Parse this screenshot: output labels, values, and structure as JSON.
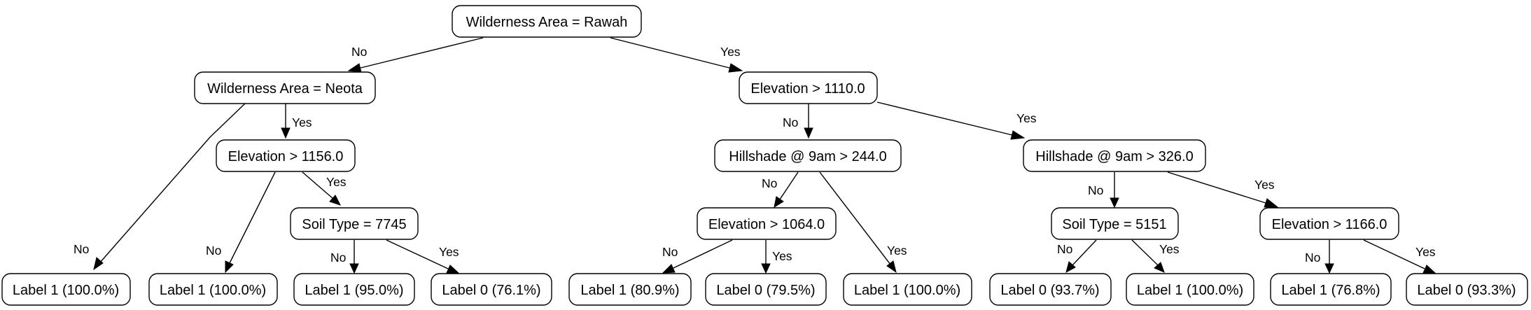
{
  "nodes": {
    "n0": "Wilderness Area = Rawah",
    "n1": "Wilderness Area = Neota",
    "n2": "Elevation > 1110.0",
    "n3": "Elevation > 1156.0",
    "n4": "Soil Type = 7745",
    "n5": "Hillshade @ 9am > 244.0",
    "n6": "Elevation > 1064.0",
    "n7": "Hillshade @ 9am > 326.0",
    "n8": "Soil Type = 5151",
    "n9": "Elevation > 1166.0",
    "l1": "Label 1 (100.0%)",
    "l2": "Label 1 (100.0%)",
    "l3": "Label 1 (95.0%)",
    "l4": "Label 0 (76.1%)",
    "l5": "Label 1 (80.9%)",
    "l6": "Label 0 (79.5%)",
    "l7": "Label 1 (100.0%)",
    "l8": "Label 0 (93.7%)",
    "l9": "Label 1 (100.0%)",
    "l10": "Label 1 (76.8%)",
    "l11": "Label 0 (93.3%)"
  },
  "edges": {
    "e0_1": "No",
    "e0_2": "Yes",
    "e1_l1": "No",
    "e1_3": "Yes",
    "e3_l2": "No",
    "e3_4": "Yes",
    "e4_l3": "No",
    "e4_l4": "Yes",
    "e2_5": "No",
    "e2_7": "Yes",
    "e5_6": "No",
    "e5_l7": "Yes",
    "e6_l5": "No",
    "e6_l6": "Yes",
    "e7_8": "No",
    "e7_9": "Yes",
    "e8_l8": "No",
    "e8_l9": "Yes",
    "e9_l10": "No",
    "e9_l11": "Yes"
  }
}
